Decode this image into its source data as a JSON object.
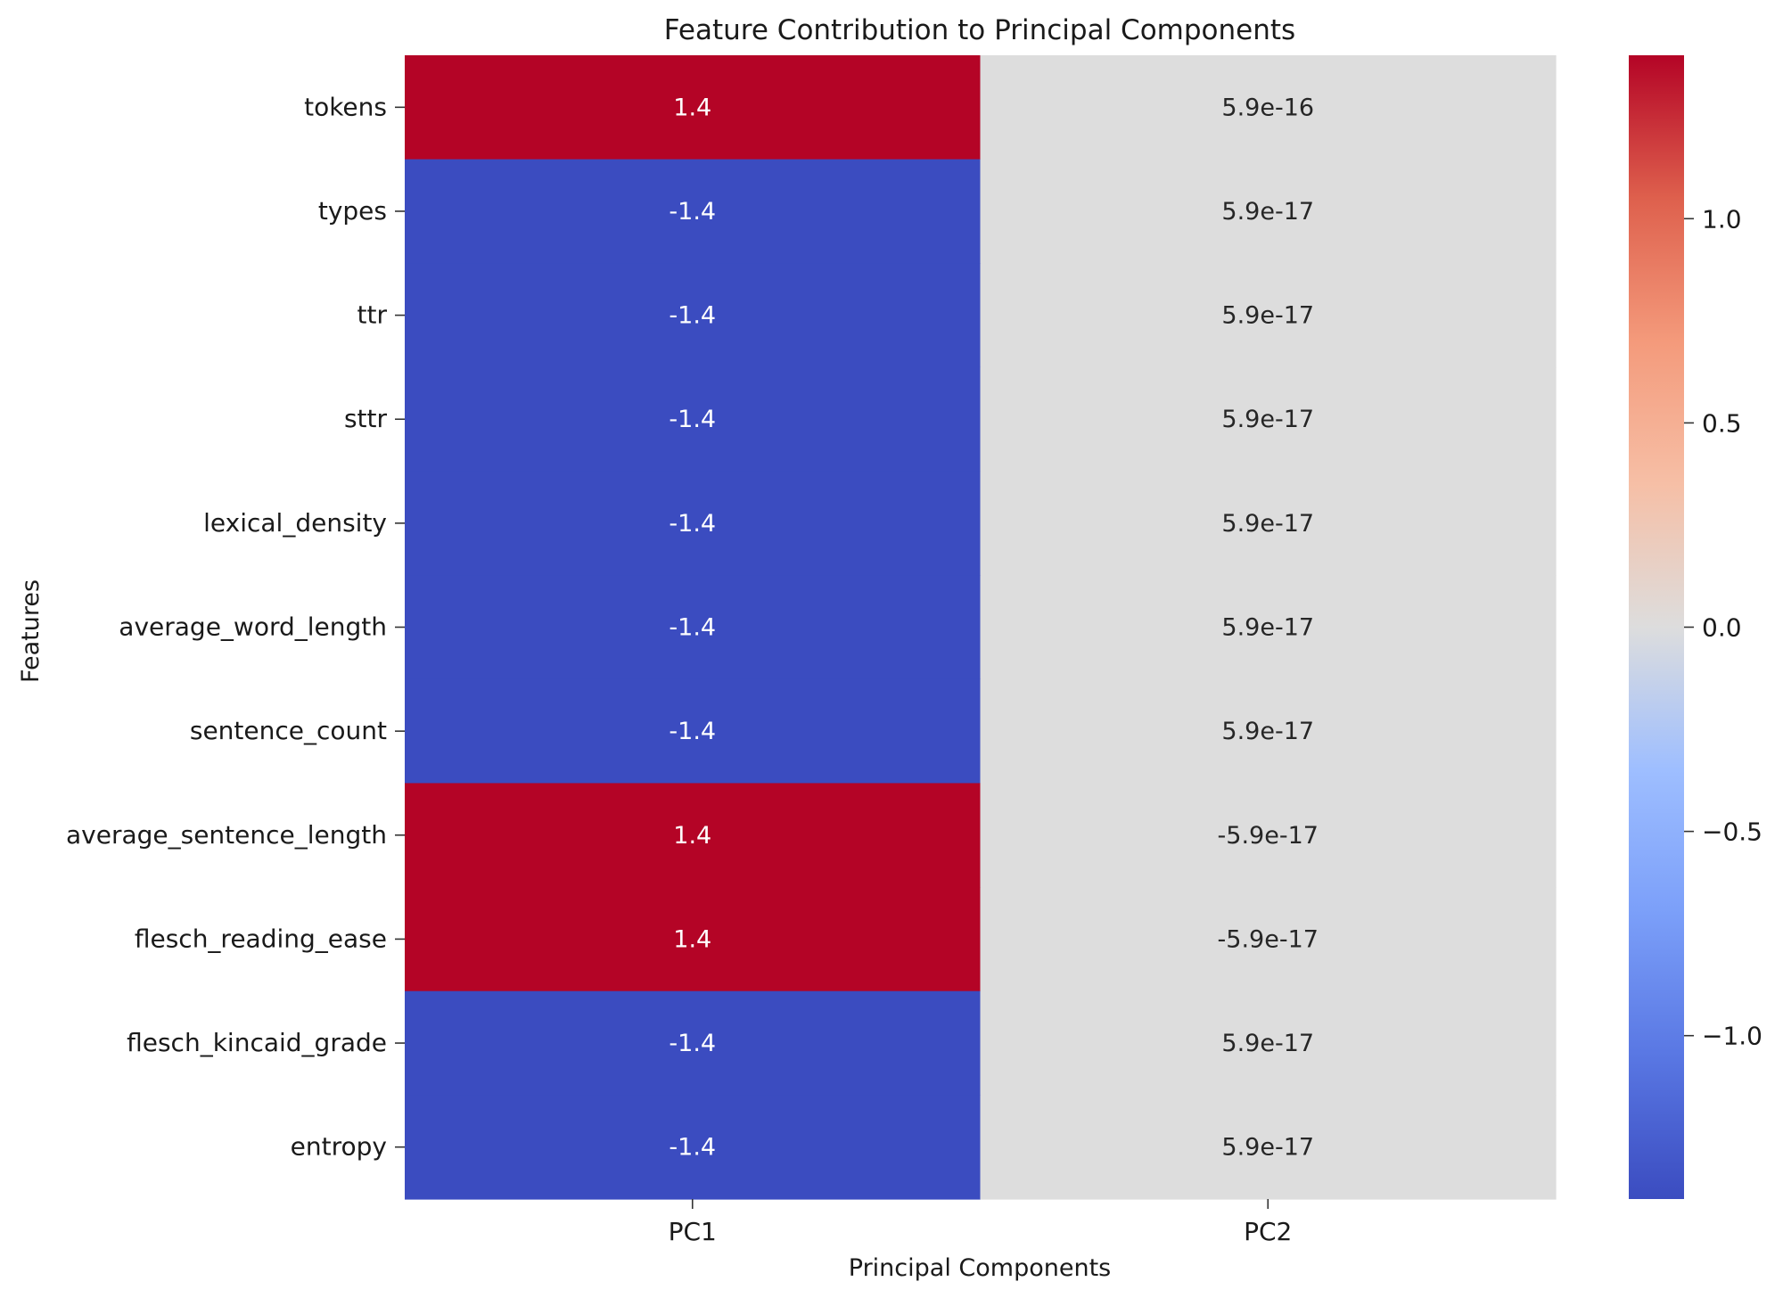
{
  "chart_data": {
    "type": "heatmap",
    "title": "Feature Contribution to Principal Components",
    "xlabel": "Principal Components",
    "ylabel": "Features",
    "columns": [
      "PC1",
      "PC2"
    ],
    "rows": [
      "tokens",
      "types",
      "ttr",
      "sttr",
      "lexical_density",
      "average_word_length",
      "sentence_count",
      "average_sentence_length",
      "flesch_reading_ease",
      "flesch_kincaid_grade",
      "entropy"
    ],
    "values": [
      [
        1.4,
        5.9e-16
      ],
      [
        -1.4,
        5.9e-17
      ],
      [
        -1.4,
        5.9e-17
      ],
      [
        -1.4,
        5.9e-17
      ],
      [
        -1.4,
        5.9e-17
      ],
      [
        -1.4,
        5.9e-17
      ],
      [
        -1.4,
        5.9e-17
      ],
      [
        1.4,
        -5.9e-17
      ],
      [
        1.4,
        -5.9e-17
      ],
      [
        -1.4,
        5.9e-17
      ],
      [
        -1.4,
        5.9e-17
      ]
    ],
    "annotations": [
      [
        "1.4",
        "5.9e-16"
      ],
      [
        "-1.4",
        "5.9e-17"
      ],
      [
        "-1.4",
        "5.9e-17"
      ],
      [
        "-1.4",
        "5.9e-17"
      ],
      [
        "-1.4",
        "5.9e-17"
      ],
      [
        "-1.4",
        "5.9e-17"
      ],
      [
        "-1.4",
        "5.9e-17"
      ],
      [
        "1.4",
        "-5.9e-17"
      ],
      [
        "1.4",
        "-5.9e-17"
      ],
      [
        "-1.4",
        "5.9e-17"
      ],
      [
        "-1.4",
        "5.9e-17"
      ]
    ],
    "colormap": "coolwarm",
    "vmin": -1.4,
    "vmax": 1.4,
    "colorbar": {
      "ticks": [
        1.0,
        0.5,
        0.0,
        -0.5,
        -1.0
      ],
      "tick_labels": [
        "1.0",
        "0.5",
        "0.0",
        "−0.5",
        "−1.0"
      ]
    },
    "colors": {
      "high": "#b40426",
      "low": "#3b4cc0",
      "mid": "#dddddd",
      "annotation_dark": "#ffffff",
      "annotation_light": "#262626"
    }
  }
}
